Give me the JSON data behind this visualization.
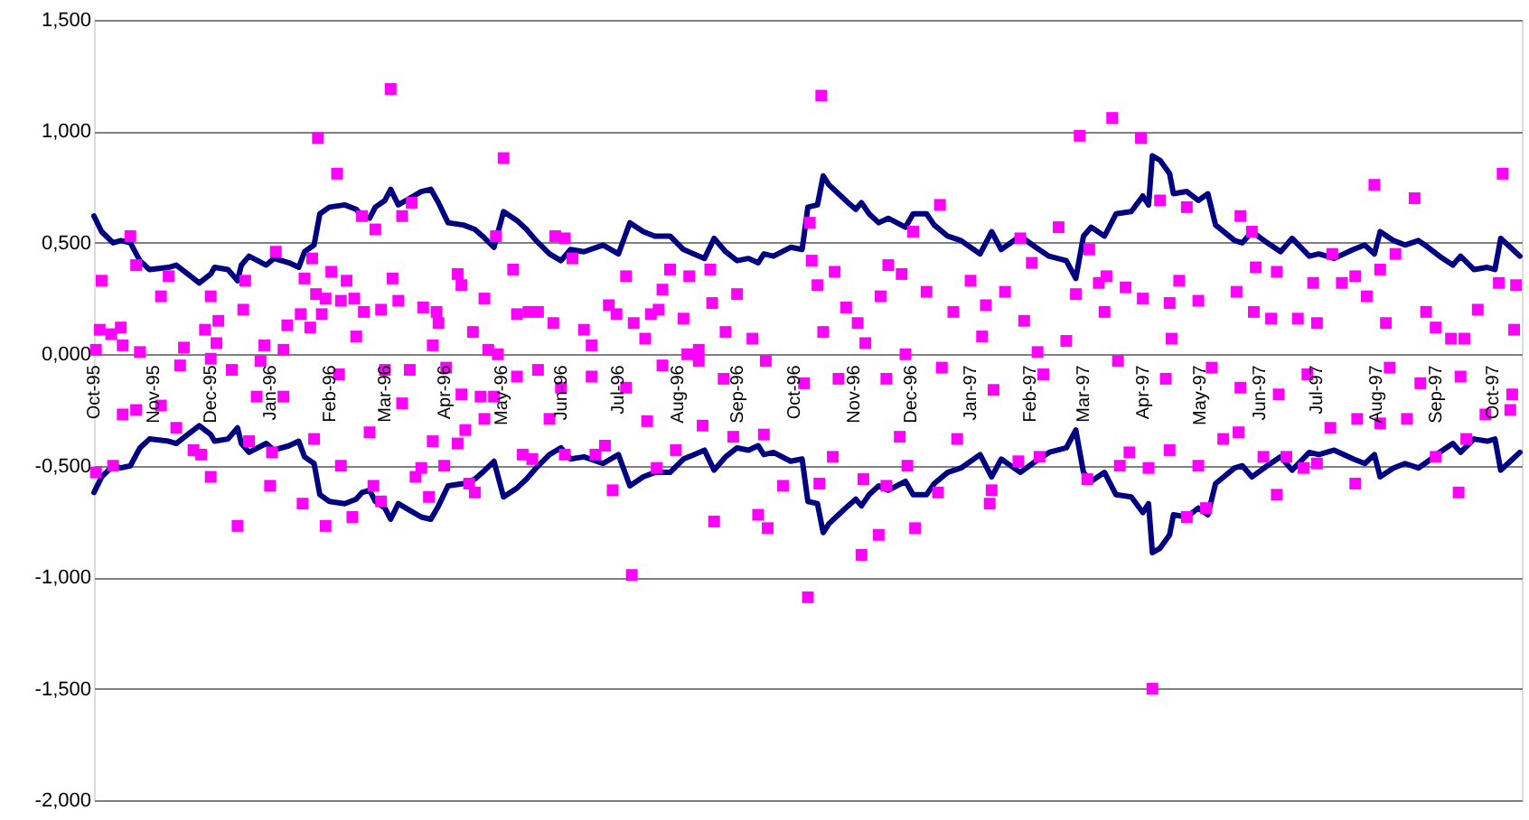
{
  "chart_data": {
    "type": "scatter",
    "grid": "y",
    "xlim": [
      "1995-10-01",
      "1997-10-16"
    ],
    "xticks": [
      {
        "value": "1995-10-01",
        "label": "Oct-95"
      },
      {
        "value": "1995-11-01",
        "label": "Nov-95"
      },
      {
        "value": "1995-12-01",
        "label": "Dec-95"
      },
      {
        "value": "1996-01-01",
        "label": "Jan-96"
      },
      {
        "value": "1996-02-01",
        "label": "Feb-96"
      },
      {
        "value": "1996-03-01",
        "label": "Mar-96"
      },
      {
        "value": "1996-04-01",
        "label": "Apr-96"
      },
      {
        "value": "1996-05-01",
        "label": "May-96"
      },
      {
        "value": "1996-06-01",
        "label": "Jun-96"
      },
      {
        "value": "1996-07-01",
        "label": "Jul-96"
      },
      {
        "value": "1996-08-01",
        "label": "Aug-96"
      },
      {
        "value": "1996-09-01",
        "label": "Sep-96"
      },
      {
        "value": "1996-10-01",
        "label": "Oct-96"
      },
      {
        "value": "1996-11-01",
        "label": "Nov-96"
      },
      {
        "value": "1996-12-01",
        "label": "Dec-96"
      },
      {
        "value": "1997-01-01",
        "label": "Jan-97"
      },
      {
        "value": "1997-02-01",
        "label": "Feb-97"
      },
      {
        "value": "1997-03-01",
        "label": "Mar-97"
      },
      {
        "value": "1997-04-01",
        "label": "Apr-97"
      },
      {
        "value": "1997-05-01",
        "label": "May-97"
      },
      {
        "value": "1997-06-01",
        "label": "Jun-97"
      },
      {
        "value": "1997-07-01",
        "label": "Jul-97"
      },
      {
        "value": "1997-08-01",
        "label": "Aug-97"
      },
      {
        "value": "1997-09-01",
        "label": "Sep-97"
      },
      {
        "value": "1997-10-01",
        "label": "Oct-97"
      }
    ],
    "ylim": [
      -2,
      1.5
    ],
    "yticks": [
      {
        "value": 1.5,
        "label": "1,500"
      },
      {
        "value": 1,
        "label": "1,000"
      },
      {
        "value": 0.5,
        "label": "0,500"
      },
      {
        "value": 0,
        "label": "0,000"
      },
      {
        "value": -0.5,
        "label": "-0,500"
      },
      {
        "value": -1,
        "label": "-1,000"
      },
      {
        "value": -1.5,
        "label": "-1,500"
      },
      {
        "value": -2,
        "label": "-2,000"
      }
    ],
    "series": [
      {
        "type": "line",
        "color": "#000080",
        "marker": "none",
        "line_style": "solid",
        "x": [
          "1995-10-01",
          "1995-10-05",
          "1995-10-11",
          "1995-10-15",
          "1995-10-20",
          "1995-10-25",
          "1995-10-30",
          "1995-11-09",
          "1995-11-13",
          "1995-11-19",
          "1995-11-25",
          "1995-12-01",
          "1995-12-03",
          "1995-12-10",
          "1995-12-15",
          "1995-12-17",
          "1995-12-21",
          "1995-12-30",
          "1996-01-03",
          "1996-01-11",
          "1996-01-16",
          "1996-01-19",
          "1996-01-24",
          "1996-01-27",
          "1996-02-01",
          "1996-02-09",
          "1996-02-15",
          "1996-02-18",
          "1996-02-22",
          "1996-02-25",
          "1996-03-01",
          "1996-03-04",
          "1996-03-08",
          "1996-03-14",
          "1996-03-20",
          "1996-03-25",
          "1996-03-29",
          "1996-04-03",
          "1996-04-11",
          "1996-04-17",
          "1996-04-21",
          "1996-04-27",
          "1996-05-02",
          "1996-05-09",
          "1996-05-14",
          "1996-05-19",
          "1996-05-26",
          "1996-06-01",
          "1996-06-06",
          "1996-06-13",
          "1996-06-23",
          "1996-07-01",
          "1996-07-07",
          "1996-07-14",
          "1996-07-20",
          "1996-07-28",
          "1996-08-04",
          "1996-08-15",
          "1996-08-20",
          "1996-08-26",
          "1996-09-01",
          "1996-09-07",
          "1996-09-12",
          "1996-09-15",
          "1996-09-20",
          "1996-09-29",
          "1996-10-05",
          "1996-10-08",
          "1996-10-13",
          "1996-10-16",
          "1996-10-19",
          "1996-10-24",
          "1996-10-29",
          "1996-11-02",
          "1996-11-05",
          "1996-11-09",
          "1996-11-14",
          "1996-11-19",
          "1996-11-28",
          "1996-12-02",
          "1996-12-09",
          "1996-12-13",
          "1996-12-20",
          "1996-12-27",
          "1997-01-06",
          "1997-01-12",
          "1997-01-17",
          "1997-01-27",
          "1997-02-04",
          "1997-02-11",
          "1997-02-20",
          "1997-02-25",
          "1997-03-01",
          "1997-03-05",
          "1997-03-12",
          "1997-03-18",
          "1997-03-26",
          "1997-04-01",
          "1997-04-04",
          "1997-04-06",
          "1997-04-10",
          "1997-04-15",
          "1997-04-17",
          "1997-04-24",
          "1997-04-30",
          "1997-05-05",
          "1997-05-09",
          "1997-05-19",
          "1997-05-23",
          "1997-05-28",
          "1997-06-05",
          "1997-06-12",
          "1997-06-18",
          "1997-06-27",
          "1997-07-02",
          "1997-07-10",
          "1997-07-20",
          "1997-07-26",
          "1997-07-31",
          "1997-08-03",
          "1997-08-10",
          "1997-08-16",
          "1997-08-23",
          "1997-08-28",
          "1997-09-03",
          "1997-09-10",
          "1997-09-14",
          "1997-09-21",
          "1997-09-28",
          "1997-10-02",
          "1997-10-05",
          "1997-10-10",
          "1997-10-15"
        ],
        "values": [
          0.62,
          0.55,
          0.5,
          0.51,
          0.5,
          0.42,
          0.38,
          0.39,
          0.4,
          0.36,
          0.32,
          0.36,
          0.39,
          0.38,
          0.33,
          0.4,
          0.44,
          0.4,
          0.43,
          0.41,
          0.39,
          0.46,
          0.49,
          0.63,
          0.66,
          0.67,
          0.65,
          0.62,
          0.61,
          0.66,
          0.69,
          0.74,
          0.67,
          0.7,
          0.73,
          0.74,
          0.68,
          0.59,
          0.58,
          0.56,
          0.53,
          0.48,
          0.64,
          0.6,
          0.56,
          0.51,
          0.45,
          0.42,
          0.47,
          0.46,
          0.49,
          0.45,
          0.59,
          0.55,
          0.53,
          0.53,
          0.47,
          0.43,
          0.52,
          0.46,
          0.42,
          0.43,
          0.41,
          0.45,
          0.44,
          0.48,
          0.47,
          0.66,
          0.67,
          0.8,
          0.76,
          0.72,
          0.68,
          0.65,
          0.68,
          0.63,
          0.59,
          0.61,
          0.57,
          0.63,
          0.63,
          0.58,
          0.53,
          0.51,
          0.45,
          0.55,
          0.47,
          0.53,
          0.48,
          0.44,
          0.42,
          0.34,
          0.53,
          0.57,
          0.53,
          0.63,
          0.64,
          0.71,
          0.67,
          0.89,
          0.87,
          0.81,
          0.72,
          0.73,
          0.69,
          0.72,
          0.58,
          0.51,
          0.5,
          0.55,
          0.5,
          0.46,
          0.52,
          0.44,
          0.45,
          0.43,
          0.47,
          0.49,
          0.45,
          0.55,
          0.51,
          0.49,
          0.51,
          0.48,
          0.44,
          0.4,
          0.44,
          0.38,
          0.39,
          0.38,
          0.52,
          0.48,
          0.44
        ]
      },
      {
        "type": "line",
        "color": "#000080",
        "marker": "none",
        "line_style": "solid",
        "x": [
          "1995-10-01",
          "1995-10-05",
          "1995-10-11",
          "1995-10-15",
          "1995-10-20",
          "1995-10-25",
          "1995-10-30",
          "1995-11-09",
          "1995-11-13",
          "1995-11-19",
          "1995-11-25",
          "1995-12-01",
          "1995-12-03",
          "1995-12-10",
          "1995-12-15",
          "1995-12-17",
          "1995-12-21",
          "1995-12-30",
          "1996-01-03",
          "1996-01-11",
          "1996-01-16",
          "1996-01-19",
          "1996-01-24",
          "1996-01-27",
          "1996-02-01",
          "1996-02-09",
          "1996-02-15",
          "1996-02-18",
          "1996-02-22",
          "1996-02-25",
          "1996-03-01",
          "1996-03-04",
          "1996-03-08",
          "1996-03-14",
          "1996-03-20",
          "1996-03-25",
          "1996-03-29",
          "1996-04-03",
          "1996-04-11",
          "1996-04-17",
          "1996-04-21",
          "1996-04-27",
          "1996-05-02",
          "1996-05-09",
          "1996-05-14",
          "1996-05-19",
          "1996-05-26",
          "1996-06-01",
          "1996-06-06",
          "1996-06-13",
          "1996-06-23",
          "1996-07-01",
          "1996-07-07",
          "1996-07-14",
          "1996-07-20",
          "1996-07-28",
          "1996-08-04",
          "1996-08-15",
          "1996-08-20",
          "1996-08-26",
          "1996-09-01",
          "1996-09-07",
          "1996-09-12",
          "1996-09-15",
          "1996-09-20",
          "1996-09-29",
          "1996-10-05",
          "1996-10-08",
          "1996-10-13",
          "1996-10-16",
          "1996-10-19",
          "1996-10-24",
          "1996-10-29",
          "1996-11-02",
          "1996-11-05",
          "1996-11-09",
          "1996-11-14",
          "1996-11-19",
          "1996-11-28",
          "1996-12-02",
          "1996-12-09",
          "1996-12-13",
          "1996-12-20",
          "1996-12-27",
          "1997-01-06",
          "1997-01-12",
          "1997-01-17",
          "1997-01-27",
          "1997-02-04",
          "1997-02-11",
          "1997-02-20",
          "1997-02-25",
          "1997-03-01",
          "1997-03-05",
          "1997-03-12",
          "1997-03-18",
          "1997-03-26",
          "1997-04-01",
          "1997-04-04",
          "1997-04-06",
          "1997-04-10",
          "1997-04-15",
          "1997-04-17",
          "1997-04-24",
          "1997-04-30",
          "1997-05-05",
          "1997-05-09",
          "1997-05-19",
          "1997-05-23",
          "1997-05-28",
          "1997-06-05",
          "1997-06-12",
          "1997-06-18",
          "1997-06-27",
          "1997-07-02",
          "1997-07-10",
          "1997-07-20",
          "1997-07-26",
          "1997-07-31",
          "1997-08-03",
          "1997-08-10",
          "1997-08-16",
          "1997-08-23",
          "1997-08-28",
          "1997-09-03",
          "1997-09-10",
          "1997-09-14",
          "1997-09-21",
          "1997-09-28",
          "1997-10-02",
          "1997-10-05",
          "1997-10-10",
          "1997-10-15"
        ],
        "values": [
          -0.62,
          -0.55,
          -0.5,
          -0.51,
          -0.5,
          -0.42,
          -0.38,
          -0.39,
          -0.4,
          -0.36,
          -0.32,
          -0.36,
          -0.39,
          -0.38,
          -0.33,
          -0.4,
          -0.44,
          -0.4,
          -0.43,
          -0.41,
          -0.39,
          -0.46,
          -0.49,
          -0.63,
          -0.66,
          -0.67,
          -0.65,
          -0.62,
          -0.61,
          -0.66,
          -0.69,
          -0.74,
          -0.67,
          -0.7,
          -0.73,
          -0.74,
          -0.68,
          -0.59,
          -0.58,
          -0.56,
          -0.53,
          -0.48,
          -0.64,
          -0.6,
          -0.56,
          -0.51,
          -0.45,
          -0.42,
          -0.47,
          -0.46,
          -0.49,
          -0.45,
          -0.59,
          -0.55,
          -0.53,
          -0.53,
          -0.47,
          -0.43,
          -0.52,
          -0.46,
          -0.42,
          -0.43,
          -0.41,
          -0.45,
          -0.44,
          -0.48,
          -0.47,
          -0.66,
          -0.67,
          -0.8,
          -0.76,
          -0.72,
          -0.68,
          -0.65,
          -0.68,
          -0.63,
          -0.59,
          -0.61,
          -0.57,
          -0.63,
          -0.63,
          -0.58,
          -0.53,
          -0.51,
          -0.45,
          -0.55,
          -0.47,
          -0.53,
          -0.48,
          -0.44,
          -0.42,
          -0.34,
          -0.53,
          -0.57,
          -0.53,
          -0.63,
          -0.64,
          -0.71,
          -0.67,
          -0.89,
          -0.87,
          -0.81,
          -0.72,
          -0.73,
          -0.69,
          -0.72,
          -0.58,
          -0.51,
          -0.5,
          -0.55,
          -0.5,
          -0.46,
          -0.52,
          -0.44,
          -0.45,
          -0.43,
          -0.47,
          -0.49,
          -0.45,
          -0.55,
          -0.51,
          -0.49,
          -0.51,
          -0.48,
          -0.44,
          -0.4,
          -0.44,
          -0.38,
          -0.39,
          -0.38,
          -0.52,
          -0.48,
          -0.44
        ]
      },
      {
        "type": "scatter",
        "color": "#ff00ff",
        "marker": "square",
        "x": [
          "1995-10-02",
          "1995-10-05",
          "1995-10-04",
          "1995-10-10",
          "1995-10-15",
          "1995-10-16",
          "1995-10-20",
          "1995-10-23",
          "1995-10-25",
          "1995-11-05",
          "1995-11-09",
          "1995-11-17",
          "1995-11-28",
          "1995-12-01",
          "1995-12-04",
          "1995-12-05",
          "1995-12-18",
          "1995-12-19",
          "1995-12-29",
          "1996-01-04",
          "1996-01-08",
          "1996-01-10",
          "1996-01-17",
          "1996-01-19",
          "1996-01-22",
          "1996-01-23",
          "1996-01-26",
          "1996-01-25",
          "1996-01-28",
          "1996-01-30",
          "1996-02-02",
          "1996-02-05",
          "1996-02-07",
          "1996-02-10",
          "1996-02-14",
          "1996-02-15",
          "1996-02-19",
          "1996-02-18",
          "1996-02-25",
          "1996-02-28",
          "1996-03-04",
          "1996-03-05",
          "1996-03-08",
          "1996-03-10",
          "1996-03-15",
          "1996-03-21",
          "1996-03-26",
          "1996-03-28",
          "1996-03-29",
          "1996-04-08",
          "1996-04-10",
          "1996-04-16",
          "1996-04-22",
          "1996-04-24",
          "1996-04-28",
          "1996-04-29",
          "1996-05-02",
          "1996-05-07",
          "1996-05-09",
          "1996-05-15",
          "1996-05-20",
          "1996-05-28",
          "1996-05-29",
          "1996-06-03",
          "1996-06-07",
          "1996-06-13",
          "1996-06-17",
          "1996-06-26",
          "1996-06-30",
          "1996-07-05",
          "1996-07-09",
          "1996-07-15",
          "1996-07-18",
          "1996-07-22",
          "1996-07-24",
          "1996-07-28",
          "1996-08-04",
          "1996-08-06",
          "1996-08-07",
          "1996-08-12",
          "1996-08-18",
          "1996-08-19",
          "1996-08-26",
          "1996-09-01",
          "1996-09-09",
          "1996-10-15",
          "1996-10-09",
          "1996-10-10",
          "1996-10-13",
          "1996-10-16",
          "1996-10-22",
          "1996-10-28",
          "1996-11-03",
          "1996-11-07",
          "1996-11-15",
          "1996-11-19",
          "1996-11-26",
          "1996-11-28",
          "1996-12-02",
          "1996-12-09",
          "1996-12-16",
          "1996-12-23",
          "1997-01-01",
          "1997-01-07",
          "1997-01-09",
          "1997-01-19",
          "1997-01-27",
          "1997-01-29",
          "1997-02-02",
          "1997-02-05",
          "1997-02-16",
          "1997-02-20",
          "1997-02-27",
          "1997-02-25",
          "1997-03-04",
          "1997-03-09",
          "1997-03-12",
          "1997-03-13",
          "1997-03-16",
          "1997-03-23",
          "1997-03-31",
          "1997-04-01",
          "1997-04-10",
          "1997-04-16",
          "1997-04-15",
          "1997-04-20",
          "1997-04-24",
          "1997-04-30",
          "1997-05-20",
          "1997-05-22",
          "1997-05-28",
          "1997-05-29",
          "1997-05-30",
          "1997-06-07",
          "1997-06-10",
          "1997-06-21",
          "1997-06-29",
          "1997-07-01",
          "1997-07-09",
          "1997-07-14",
          "1997-07-21",
          "1997-07-27",
          "1997-07-31",
          "1997-08-03",
          "1997-08-06",
          "1997-08-11",
          "1997-08-21",
          "1997-08-27",
          "1997-09-01",
          "1997-09-09",
          "1997-09-16",
          "1997-09-23",
          "1997-10-04",
          "1997-10-06",
          "1997-10-12",
          "1997-10-13",
          "1995-10-02",
          "1995-10-11",
          "1995-10-16",
          "1995-10-23",
          "1995-11-05",
          "1995-11-13",
          "1995-11-22",
          "1995-11-26",
          "1995-12-01",
          "1995-12-15",
          "1995-12-21",
          "1995-12-25",
          "1996-01-02",
          "1996-01-01",
          "1996-01-08",
          "1996-01-18",
          "1996-01-24",
          "1996-01-30",
          "1996-02-07",
          "1996-02-13",
          "1996-02-22",
          "1996-02-24",
          "1996-02-28",
          "1996-03-10",
          "1996-03-17",
          "1996-03-20",
          "1996-03-24",
          "1996-03-26",
          "1996-04-01",
          "1996-04-08",
          "1996-04-12",
          "1996-04-14",
          "1996-04-17",
          "1996-04-22",
          "1996-04-27",
          "1996-05-12",
          "1996-05-17",
          "1996-05-26",
          "1996-06-03",
          "1996-06-19",
          "1996-06-24",
          "1996-06-28",
          "1996-07-08",
          "1996-07-16",
          "1996-07-21",
          "1996-07-31",
          "1996-08-14",
          "1996-08-20",
          "1996-08-30",
          "1996-09-12",
          "1996-09-17",
          "1996-09-15",
          "1996-09-25",
          "1996-10-08",
          "1996-10-14",
          "1996-10-21",
          "1996-11-05",
          "1996-11-06",
          "1996-11-14",
          "1996-11-18",
          "1996-11-25",
          "1996-11-29",
          "1996-12-03",
          "1996-12-15",
          "1996-12-25",
          "1997-01-11",
          "1997-01-12",
          "1997-01-26",
          "1997-02-06",
          "1997-03-03",
          "1997-03-20",
          "1997-03-25",
          "1997-04-04",
          "1997-04-06",
          "1997-04-15",
          "1997-04-24",
          "1997-04-30",
          "1997-05-04",
          "1997-05-13",
          "1997-05-21",
          "1997-06-03",
          "1997-06-10",
          "1997-06-15",
          "1997-06-24",
          "1997-07-01",
          "1997-07-08",
          "1997-07-21",
          "1997-07-22",
          "1997-08-03",
          "1997-08-17",
          "1997-09-01",
          "1997-09-13",
          "1997-09-17",
          "1997-09-27",
          "1997-10-10",
          "1995-11-15",
          "1995-12-01",
          "1995-12-12",
          "1995-12-27",
          "1996-02-06",
          "1996-03-01",
          "1996-03-14",
          "1996-04-02",
          "1996-04-10",
          "1996-04-20",
          "1996-05-09",
          "1996-05-20",
          "1996-06-01",
          "1996-06-17",
          "1996-07-05",
          "1996-07-24",
          "1996-08-12",
          "1996-08-25",
          "1996-09-16",
          "1996-10-06",
          "1996-10-24",
          "1996-11-18",
          "1996-12-17",
          "1997-01-13",
          "1997-02-08",
          "1997-03-19",
          "1997-04-13",
          "1997-05-07",
          "1997-05-22",
          "1997-06-11",
          "1997-06-26",
          "1997-08-08",
          "1997-08-24",
          "1997-09-14",
          "1997-10-11"
        ],
        "values": [
          0.02,
          0.33,
          0.11,
          0.09,
          0.12,
          0.04,
          0.53,
          0.4,
          0.01,
          0.26,
          0.35,
          0.03,
          0.11,
          0.26,
          0.05,
          0.15,
          0.2,
          0.33,
          0.04,
          0.46,
          0.02,
          0.13,
          0.18,
          0.34,
          0.12,
          0.43,
          0.97,
          0.27,
          0.18,
          0.25,
          0.37,
          0.81,
          0.24,
          0.33,
          0.25,
          0.08,
          0.19,
          0.62,
          0.56,
          0.2,
          1.19,
          0.34,
          0.24,
          0.62,
          0.68,
          0.21,
          0.04,
          0.19,
          0.14,
          0.36,
          0.31,
          0.1,
          0.25,
          0.02,
          0.53,
          0.0,
          0.88,
          0.38,
          0.18,
          0.19,
          0.19,
          0.14,
          0.53,
          0.52,
          0.43,
          0.11,
          0.04,
          0.22,
          0.18,
          0.35,
          0.14,
          0.07,
          0.18,
          0.2,
          0.29,
          0.38,
          0.16,
          0.0,
          0.35,
          0.02,
          0.38,
          0.23,
          0.1,
          0.27,
          0.07,
          1.16,
          0.59,
          0.42,
          0.31,
          0.1,
          0.37,
          0.21,
          0.14,
          0.05,
          0.26,
          0.4,
          0.36,
          0.0,
          0.55,
          0.28,
          0.67,
          0.19,
          0.33,
          0.08,
          0.22,
          0.28,
          0.52,
          0.15,
          0.41,
          0.01,
          0.57,
          0.06,
          0.98,
          0.27,
          0.47,
          0.32,
          0.19,
          0.35,
          1.06,
          0.3,
          0.97,
          0.25,
          0.69,
          0.07,
          0.23,
          0.33,
          0.66,
          0.24,
          0.28,
          0.62,
          0.55,
          0.19,
          0.39,
          0.16,
          0.37,
          0.16,
          0.32,
          0.14,
          0.45,
          0.32,
          0.35,
          0.26,
          0.76,
          0.38,
          0.14,
          0.45,
          0.7,
          0.19,
          0.12,
          0.07,
          0.07,
          0.2,
          0.32,
          0.81,
          0.11,
          0.31,
          -0.53,
          -0.5,
          -0.27,
          -0.25,
          -0.23,
          -0.33,
          -0.43,
          -0.45,
          -0.55,
          -0.77,
          -0.39,
          -0.19,
          -0.44,
          -0.59,
          -0.19,
          -0.67,
          -0.38,
          -0.77,
          -0.5,
          -0.73,
          -0.35,
          -0.59,
          -0.66,
          -0.22,
          -0.55,
          -0.51,
          -0.64,
          -0.39,
          -0.5,
          -0.4,
          -0.34,
          -0.58,
          -0.62,
          -0.29,
          -0.19,
          -0.45,
          -0.47,
          -0.29,
          -0.45,
          -0.45,
          -0.41,
          -0.61,
          -0.99,
          -0.3,
          -0.51,
          -0.43,
          -0.32,
          -0.75,
          -0.37,
          -0.72,
          -0.78,
          -0.36,
          -0.59,
          -1.09,
          -0.58,
          -0.46,
          -0.9,
          -0.56,
          -0.81,
          -0.59,
          -0.37,
          -0.5,
          -0.78,
          -0.62,
          -0.38,
          -0.67,
          -0.61,
          -0.48,
          -0.46,
          -0.56,
          -0.5,
          -0.44,
          -0.51,
          -1.5,
          -0.43,
          -0.73,
          -0.5,
          -0.69,
          -0.38,
          -0.35,
          -0.46,
          -0.63,
          -0.46,
          -0.51,
          -0.49,
          -0.33,
          -0.58,
          -0.29,
          -0.31,
          -0.29,
          -0.46,
          -0.62,
          -0.38,
          -0.27,
          -0.25,
          -0.05,
          -0.02,
          -0.07,
          -0.03,
          -0.09,
          -0.07,
          -0.07,
          -0.06,
          -0.18,
          -0.19,
          -0.1,
          -0.07,
          -0.15,
          -0.1,
          -0.15,
          -0.05,
          -0.03,
          -0.11,
          -0.03,
          -0.13,
          -0.11,
          -0.11,
          -0.06,
          -0.16,
          -0.09,
          -0.03,
          -0.11,
          -0.06,
          -0.15,
          -0.18,
          -0.09,
          -0.06,
          -0.13,
          -0.1,
          -0.18
        ]
      }
    ]
  }
}
